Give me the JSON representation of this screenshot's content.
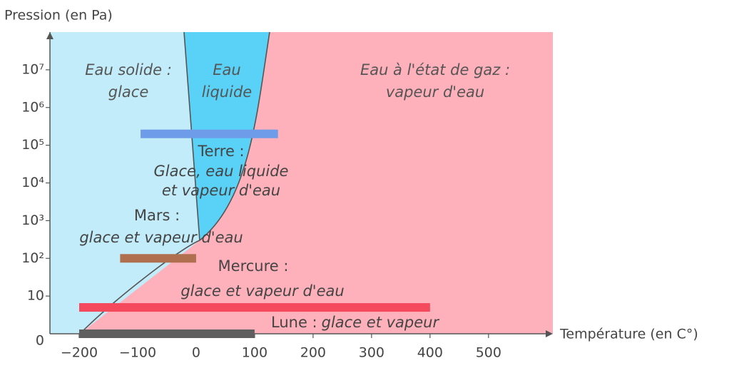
{
  "chart_data": {
    "type": "range",
    "y_axis_label": "Pression (en Pa)",
    "x_axis_label": "Température (en C°)",
    "xlim": [
      -250,
      610
    ],
    "xticks": [
      {
        "value": -200,
        "label": "−200"
      },
      {
        "value": -100,
        "label": "−100"
      },
      0,
      100,
      200,
      300,
      400,
      500
    ],
    "ylim": [
      0,
      100000000
    ],
    "yscale": "log",
    "yticks": [
      0,
      10,
      {
        "value": 100,
        "label": "10²"
      },
      {
        "value": 1000,
        "label": "10³"
      },
      {
        "value": 10000,
        "label": "10⁴"
      },
      {
        "value": 100000,
        "label": "10⁵"
      },
      {
        "value": 1000000,
        "label": "10⁶"
      },
      {
        "value": 10000000,
        "label": "10⁷"
      }
    ],
    "regions": [
      {
        "name": "Eau solide :",
        "detail": "glace",
        "color": "#c2ecf9"
      },
      {
        "name": "Eau",
        "detail": "liquide",
        "color": "#5ad1f6"
      },
      {
        "name": "Eau à l'état de gaz :",
        "detail": "vapeur d'eau",
        "color": "#ffb1bb"
      }
    ],
    "series": [
      {
        "name": "Terre :",
        "description": [
          "Glace, eau liquide",
          "et vapeur d'eau"
        ],
        "color": "#6f9ce8",
        "xmin": -95,
        "xmax": 140,
        "pressure": 200000
      },
      {
        "name": "Mars :",
        "description": [
          "glace et vapeur d'eau"
        ],
        "color": "#b07050",
        "xmin": -130,
        "xmax": 0,
        "pressure": 100
      },
      {
        "name": "Mercure :",
        "description": [
          "glace et vapeur d'eau"
        ],
        "color": "#f5495e",
        "xmin": -200,
        "xmax": 400,
        "pressure": 5
      },
      {
        "name": "Lune :",
        "description": [
          "glace et vapeur"
        ],
        "color": "#5f5f5f",
        "xmin": -200,
        "xmax": 100,
        "pressure": 1
      }
    ]
  }
}
